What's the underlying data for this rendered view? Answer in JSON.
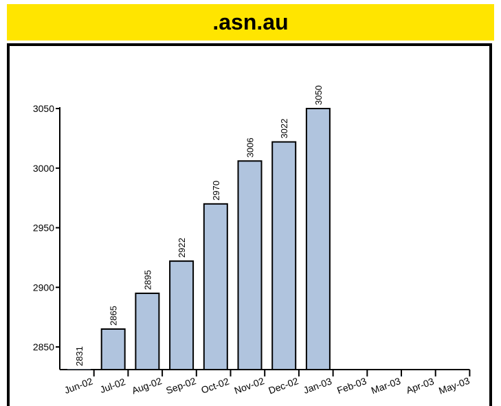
{
  "title": ".asn.au",
  "colors": {
    "title_background": "#ffe500",
    "bar_fill": "#b0c4de",
    "bar_stroke": "#000000"
  },
  "chart_data": {
    "type": "bar",
    "title": ".asn.au",
    "xlabel": "",
    "ylabel": "",
    "categories": [
      "Jun-02",
      "Jul-02",
      "Aug-02",
      "Sep-02",
      "Oct-02",
      "Nov-02",
      "Dec-02",
      "Jan-03",
      "Feb-03",
      "Mar-03",
      "Apr-03",
      "May-03"
    ],
    "values": [
      2831,
      2865,
      2895,
      2922,
      2970,
      3006,
      3022,
      3050,
      null,
      null,
      null,
      null
    ],
    "ylim": [
      2831,
      3050
    ],
    "yticks": [
      2850,
      2900,
      2950,
      3000,
      3050
    ],
    "grid": false,
    "legend": "none"
  }
}
